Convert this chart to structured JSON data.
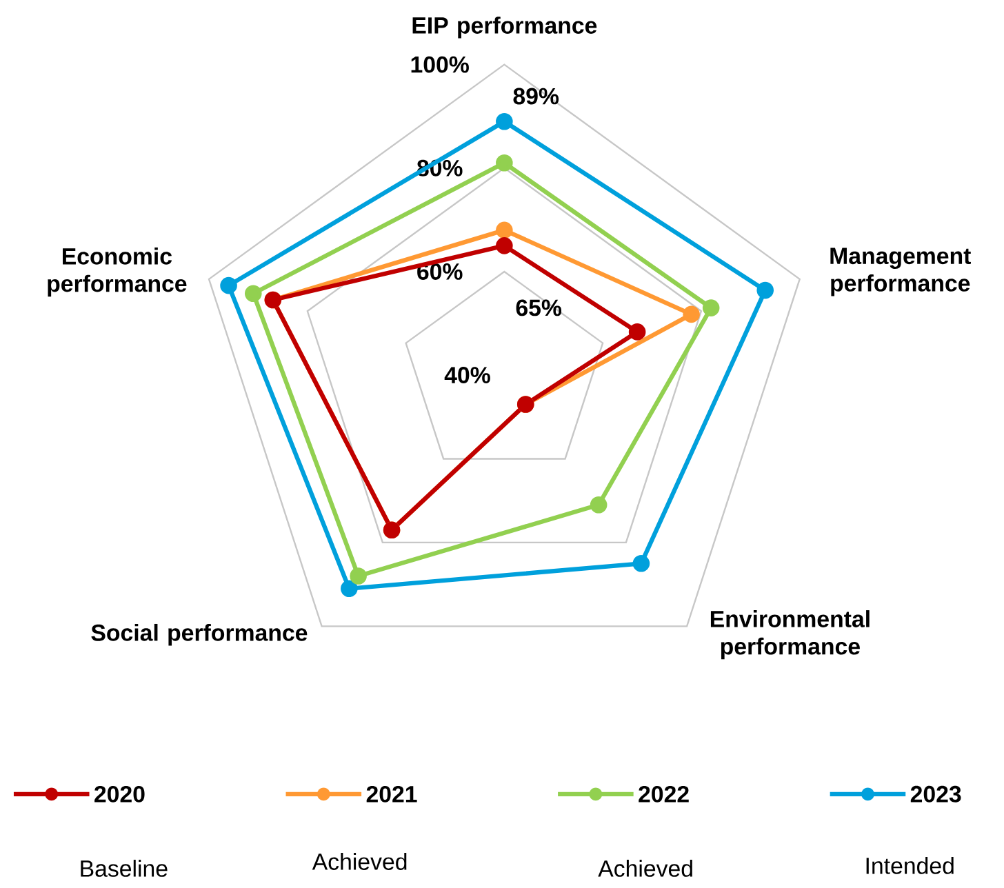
{
  "chart_data": {
    "type": "radar",
    "categories": [
      "EIP performance",
      "Management performance",
      "Environmental performance",
      "Social performance",
      "Economic performance"
    ],
    "series": [
      {
        "name": "2020",
        "color": "#c00000",
        "values": [
          65,
          67,
          47,
          77,
          87
        ]
      },
      {
        "name": "2021",
        "color": "#ff9933",
        "values": [
          68,
          78,
          47,
          77,
          87
        ]
      },
      {
        "name": "2022",
        "color": "#92d050",
        "values": [
          81,
          82,
          71,
          88,
          91
        ]
      },
      {
        "name": "2023",
        "color": "#00a0dc",
        "values": [
          89,
          93,
          85,
          91,
          96
        ]
      }
    ],
    "ylim": [
      40,
      100
    ],
    "yticks": [
      {
        "value": 40,
        "label": "40%"
      },
      {
        "value": 60,
        "label": "60%"
      },
      {
        "value": 80,
        "label": "80%"
      },
      {
        "value": 100,
        "label": "100%"
      }
    ],
    "grid": true,
    "legend": "bottom",
    "marker": "circle",
    "annotations": [
      "89%",
      "65%",
      "Baseline",
      "Achieved",
      "Achieved",
      "Intended"
    ]
  }
}
